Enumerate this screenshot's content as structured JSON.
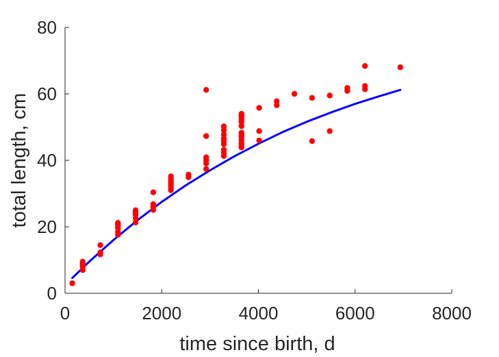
{
  "chart_data": {
    "type": "scatter",
    "title": "",
    "xlabel": "time since birth, d",
    "ylabel": "total length, cm",
    "xlim": [
      0,
      8000
    ],
    "ylim": [
      0,
      80
    ],
    "xticks": [
      0,
      2000,
      4000,
      6000,
      8000
    ],
    "yticks": [
      0,
      20,
      40,
      60,
      80
    ],
    "xtick_labels": [
      "0",
      "2000",
      "4000",
      "6000",
      "8000"
    ],
    "ytick_labels": [
      "0",
      "20",
      "40",
      "60",
      "80"
    ],
    "grid": false,
    "legend": "none",
    "series": [
      {
        "kind": "points",
        "color": "#ff0000",
        "x": [
          150,
          365,
          365,
          365,
          365,
          365,
          730,
          730,
          730,
          1095,
          1095,
          1095,
          1095,
          1095,
          1095,
          1460,
          1460,
          1460,
          1460,
          1460,
          1825,
          1825,
          1825,
          1825,
          2190,
          2190,
          2190,
          2190,
          2190,
          2190,
          2190,
          2555,
          2555,
          2920,
          2920,
          2920,
          2920,
          2920,
          2920,
          3285,
          3285,
          3285,
          3285,
          3285,
          3285,
          3285,
          3285,
          3285,
          3650,
          3650,
          3650,
          3650,
          3650,
          3650,
          3650,
          3650,
          3650,
          3650,
          3650,
          3650,
          3650,
          4015,
          4015,
          4015,
          4380,
          4380,
          4745,
          5110,
          5110,
          5475,
          5475,
          5840,
          5840,
          6205,
          6205,
          6205,
          6935
        ],
        "y": [
          3,
          7,
          8,
          8.5,
          9,
          9.5,
          11.7,
          12.3,
          14.5,
          17.6,
          18.5,
          19.6,
          20.3,
          20.8,
          21.2,
          21.3,
          22.6,
          23.7,
          24.3,
          25,
          25.1,
          26.1,
          26.8,
          30.4,
          31,
          31.7,
          32.4,
          33,
          33.6,
          34.4,
          35.2,
          34.9,
          35.7,
          37.4,
          39.1,
          40,
          40.9,
          47.3,
          61.2,
          41.3,
          42.3,
          43.2,
          44.9,
          45.8,
          46.6,
          47.8,
          49.1,
          50.2,
          43.9,
          44.5,
          45.2,
          46.1,
          47,
          47.7,
          48.3,
          50.3,
          51.5,
          52.1,
          52.8,
          53.4,
          54,
          46,
          48.8,
          55.8,
          56.6,
          57.8,
          60,
          45.8,
          58.8,
          48.8,
          59.5,
          60.9,
          61.8,
          61.4,
          62.4,
          68.4,
          68
        ]
      },
      {
        "kind": "curve",
        "color": "#0000ff",
        "x": [
          150,
          500,
          1000,
          1500,
          2000,
          2500,
          3000,
          3500,
          4000,
          4500,
          5000,
          5500,
          6000,
          6500,
          6935
        ],
        "y": [
          4.6,
          9.5,
          16,
          22,
          27.5,
          32.5,
          37,
          41.2,
          45,
          48.5,
          51.6,
          54.4,
          57,
          59.3,
          61.2
        ]
      }
    ]
  }
}
